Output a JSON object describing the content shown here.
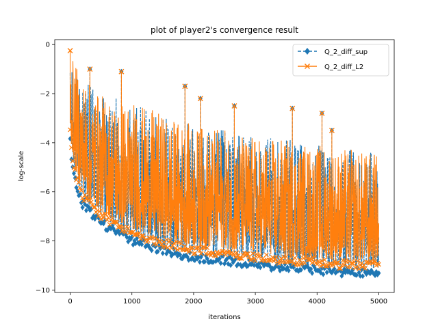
{
  "chart_data": {
    "type": "line",
    "title": "plot of player2's convergence result",
    "xlabel": "iterations",
    "ylabel": "log-scale",
    "xlim": [
      -250,
      5250
    ],
    "ylim": [
      -10.1,
      0.2
    ],
    "xticks": [
      0,
      1000,
      2000,
      3000,
      4000,
      5000
    ],
    "yticks": [
      0,
      -2,
      -4,
      -6,
      -8,
      -10
    ],
    "xtick_labels": [
      "0",
      "1000",
      "2000",
      "3000",
      "4000",
      "5000"
    ],
    "ytick_labels": [
      "0",
      "−2",
      "−4",
      "−6",
      "−8",
      "−10"
    ],
    "grid": false,
    "legend_position": "top-right",
    "series": [
      {
        "name": "Q_2_diff_sup",
        "color": "#1f77b4",
        "linestyle": "dashed",
        "marker": "diamond",
        "x": [
          0,
          200,
          500,
          1000,
          1500,
          2000,
          2500,
          3000,
          3500,
          4000,
          4500,
          5000
        ],
        "y_floor": [
          -3.5,
          -6.3,
          -7.1,
          -7.8,
          -8.2,
          -8.5,
          -8.6,
          -8.8,
          -8.9,
          -9.0,
          -9.1,
          -9.1
        ],
        "y_ceiling": [
          -0.8,
          -1.0,
          -1.8,
          -2.0,
          -2.6,
          -3.0,
          -3.2,
          -3.5,
          -3.6,
          -3.8,
          -4.0,
          -4.2
        ],
        "spikes_x": [
          320,
          830,
          1860,
          2110,
          2660,
          3600,
          4080,
          4240
        ],
        "spikes_y": [
          -1.0,
          -1.1,
          -1.7,
          -2.2,
          -2.5,
          -2.6,
          -2.8,
          -3.5
        ]
      },
      {
        "name": "Q_2_diff_L2",
        "color": "#ff7f0e",
        "linestyle": "solid",
        "marker": "x",
        "x": [
          0,
          200,
          500,
          1000,
          1500,
          2000,
          2500,
          3000,
          3500,
          4000,
          4500,
          5000
        ],
        "y_floor": [
          -3.2,
          -6.0,
          -6.8,
          -7.5,
          -7.9,
          -8.2,
          -8.3,
          -8.5,
          -8.6,
          -8.7,
          -8.8,
          -8.8
        ],
        "y_ceiling": [
          -0.3,
          -1.0,
          -1.8,
          -2.0,
          -2.6,
          -3.0,
          -3.2,
          -3.5,
          -3.6,
          -3.8,
          -4.0,
          -4.2
        ],
        "spikes_x": [
          0,
          320,
          830,
          1860,
          2110,
          2660,
          3600,
          4080,
          4240
        ],
        "spikes_y": [
          -0.25,
          -1.0,
          -1.1,
          -1.7,
          -2.2,
          -2.5,
          -2.6,
          -2.8,
          -3.5
        ]
      }
    ]
  }
}
